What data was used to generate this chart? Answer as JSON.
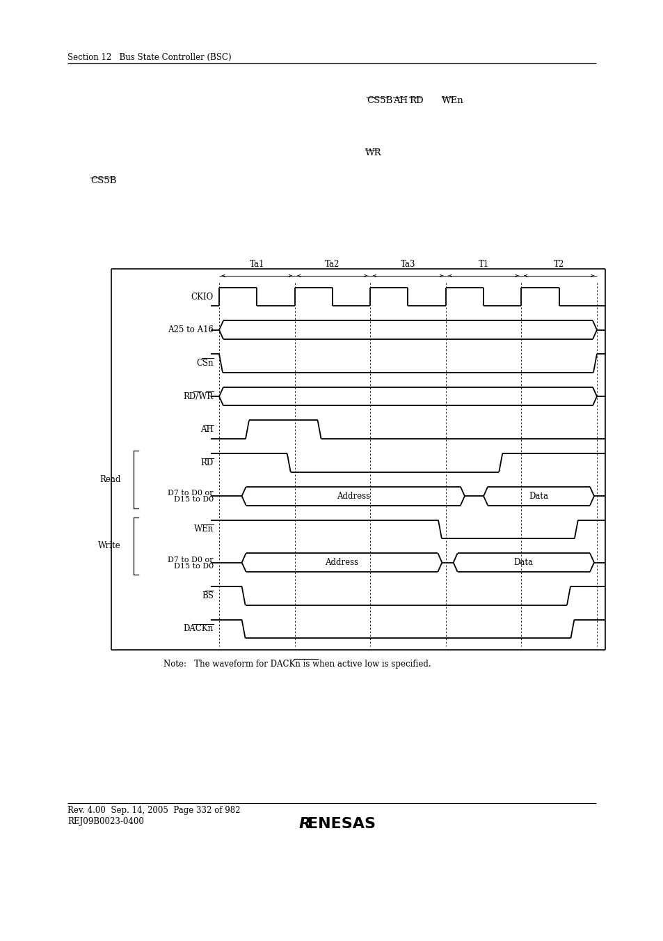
{
  "bg_color": "#ffffff",
  "header_text": "Section 12   Bus State Controller (BSC)",
  "footer_text1": "Rev. 4.00  Sep. 14, 2005  Page 332 of 982",
  "footer_text2": "REJ09B0023-0400",
  "note_text": "Note:   The waveform for DACKn is when active low is specified.",
  "timing_labels": [
    "Ta1",
    "Ta2",
    "Ta3",
    "T1",
    "T2"
  ],
  "signal_names": [
    "CKIO",
    "A25 to A16",
    "CSn",
    "RD/WR",
    "AH",
    "RD",
    "D7 to D0 or\nD15 to D0",
    "WEn",
    "D7 to D0 or\nD15 to D0",
    "BS",
    "DACKn"
  ],
  "read_label": "Read",
  "write_label": "Write"
}
